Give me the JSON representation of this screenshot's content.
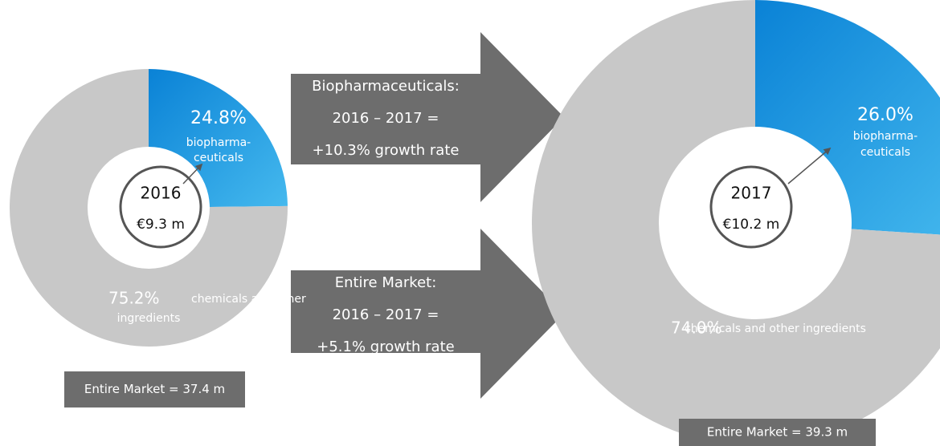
{
  "chart_data": [
    {
      "type": "donut",
      "center_label": "2016",
      "center_value": "€9.3 m",
      "categories": [
        [
          "biopharma-",
          "ceuticals"
        ],
        [
          "chemicals and other",
          "ingredients"
        ]
      ],
      "values": [
        24.8,
        75.2
      ],
      "value_labels": [
        "24.8%",
        "75.2%"
      ],
      "colors": [
        "#1a96e0",
        "#c8c8c8"
      ],
      "footer": "Entire Market = 37.4 m"
    },
    {
      "type": "donut",
      "center_label": "2017",
      "center_value": "€10.2 m",
      "categories": [
        [
          "biopharma-",
          "ceuticals"
        ],
        [
          "chemicals and other ingredients"
        ]
      ],
      "values": [
        26.0,
        74.0
      ],
      "value_labels": [
        "26.0%",
        "74.0%"
      ],
      "colors": [
        "#1a96e0",
        "#c8c8c8"
      ],
      "footer": "Entire Market = 39.3 m"
    }
  ],
  "arrows": [
    {
      "lines": [
        "Biopharmaceuticals:",
        "2016 – 2017 =",
        "+10.3% growth rate"
      ]
    },
    {
      "lines": [
        "Entire Market:",
        "2016 – 2017 =",
        "+5.1% growth rate"
      ]
    }
  ]
}
